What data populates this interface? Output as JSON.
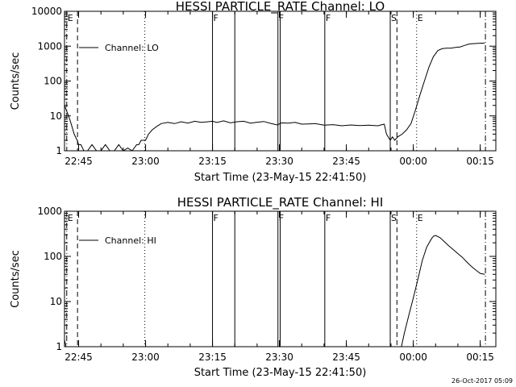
{
  "footer": {
    "date": "26-Oct-2017 05:09"
  },
  "chart_data": [
    {
      "type": "line",
      "title": "HESSI PARTICLE_RATE Channel: LO",
      "xlabel": "Start Time (23-May-15 22:41:50)",
      "ylabel": "Counts/sec",
      "y_scale": "log",
      "xlim": [
        "22:41:50",
        "00:18:30"
      ],
      "ylim": [
        1,
        10000
      ],
      "x_ticks": [
        "22:45",
        "23:00",
        "23:15",
        "23:30",
        "23:45",
        "00:00",
        "00:15"
      ],
      "y_ticks": [
        "1",
        "10",
        "100",
        "1000",
        "10000"
      ],
      "legend": {
        "label": "Channel: LO",
        "position": "top-left"
      },
      "grid": false,
      "markers": [
        {
          "time": "22:42:20",
          "label": "E",
          "style": "dashdot"
        },
        {
          "time": "22:44:45",
          "label": "",
          "style": "dashed"
        },
        {
          "time": "22:59:50",
          "label": "",
          "style": "dotted"
        },
        {
          "time": "23:15:00",
          "label": "F",
          "style": "solid"
        },
        {
          "time": "23:20:00",
          "label": "",
          "style": "solid"
        },
        {
          "time": "23:29:40",
          "label": "F",
          "style": "solid"
        },
        {
          "time": "23:30:10",
          "label": "",
          "style": "solid"
        },
        {
          "time": "23:40:10",
          "label": "F",
          "style": "solid"
        },
        {
          "time": "23:54:50",
          "label": "S",
          "style": "solid"
        },
        {
          "time": "23:56:20",
          "label": "",
          "style": "dashed"
        },
        {
          "time": "00:00:45",
          "label": "E",
          "style": "dotted"
        },
        {
          "time": "00:16:10",
          "label": "",
          "style": "dashdot"
        }
      ],
      "series": [
        {
          "x": [
            "22:41:50",
            "22:42:30",
            "22:43:00",
            "22:43:30",
            "22:44:00",
            "22:44:40",
            "22:45:00",
            "22:45:30",
            "22:46:10",
            "22:47:00",
            "22:48:00",
            "22:49:00",
            "22:50:00",
            "22:51:00",
            "22:52:00",
            "22:53:00",
            "22:54:00",
            "22:55:00",
            "22:56:00",
            "22:57:00",
            "22:58:00",
            "22:58:30",
            "22:59:00",
            "22:59:30",
            "23:00:00",
            "23:00:40",
            "23:01:30",
            "23:02:30",
            "23:03:30",
            "23:05:00",
            "23:06:30",
            "23:08:00",
            "23:09:30",
            "23:11:00",
            "23:12:30",
            "23:14:00",
            "23:15:00",
            "23:16:00",
            "23:17:30",
            "23:19:00",
            "23:20:30",
            "23:22:00",
            "23:23:30",
            "23:25:00",
            "23:26:30",
            "23:28:00",
            "23:29:30",
            "23:30:30",
            "23:32:00",
            "23:33:30",
            "23:35:00",
            "23:36:30",
            "23:38:00",
            "23:40:00",
            "23:42:00",
            "23:44:00",
            "23:46:00",
            "23:48:00",
            "23:50:00",
            "23:52:00",
            "23:53:30",
            "23:54:00",
            "23:54:50",
            "23:55:20",
            "23:55:50",
            "23:56:30",
            "23:57:30",
            "23:58:30",
            "23:59:30",
            "00:00:30",
            "00:01:30",
            "00:02:30",
            "00:03:30",
            "00:04:30",
            "00:05:30",
            "00:06:30",
            "00:07:30",
            "00:08:30",
            "00:09:30",
            "00:10:30",
            "00:11:30",
            "00:12:30",
            "00:13:30",
            "00:14:30",
            "00:15:30",
            "00:16:00"
          ],
          "y": [
            20,
            12,
            8,
            5,
            3,
            2,
            1.5,
            1.5,
            1,
            1,
            1.5,
            1,
            1,
            1.5,
            1,
            1,
            1.5,
            1,
            1.2,
            1,
            1.5,
            1.5,
            2,
            2,
            2,
            3,
            4,
            5,
            6,
            6.5,
            6,
            6.8,
            6.2,
            7,
            6.5,
            6.8,
            7,
            6.5,
            7.2,
            6.3,
            6.8,
            7,
            6.2,
            6.6,
            6.9,
            6.1,
            5.5,
            6.3,
            6.2,
            6.5,
            5.8,
            5.9,
            6,
            5.4,
            5.6,
            5.2,
            5.5,
            5.3,
            5.4,
            5.2,
            5.8,
            3,
            2,
            2.5,
            2,
            2.5,
            3,
            4,
            6,
            15,
            40,
            100,
            250,
            500,
            750,
            850,
            880,
            880,
            920,
            950,
            1050,
            1150,
            1180,
            1200,
            1220,
            1210
          ]
        }
      ]
    },
    {
      "type": "line",
      "title": "HESSI PARTICLE_RATE Channel: HI",
      "xlabel": "Start Time (23-May-15 22:41:50)",
      "ylabel": "Counts/sec",
      "y_scale": "log",
      "xlim": [
        "22:41:50",
        "00:18:30"
      ],
      "ylim": [
        1,
        1000
      ],
      "x_ticks": [
        "22:45",
        "23:00",
        "23:15",
        "23:30",
        "23:45",
        "00:00",
        "00:15"
      ],
      "y_ticks": [
        "1",
        "10",
        "100",
        "1000"
      ],
      "legend": {
        "label": "Channel: HI",
        "position": "top-left"
      },
      "grid": false,
      "markers": [
        {
          "time": "22:42:20",
          "label": "E",
          "style": "dashdot"
        },
        {
          "time": "22:44:45",
          "label": "",
          "style": "dashed"
        },
        {
          "time": "22:59:50",
          "label": "",
          "style": "dotted"
        },
        {
          "time": "23:15:00",
          "label": "F",
          "style": "solid"
        },
        {
          "time": "23:20:00",
          "label": "",
          "style": "solid"
        },
        {
          "time": "23:29:40",
          "label": "F",
          "style": "solid"
        },
        {
          "time": "23:30:10",
          "label": "",
          "style": "solid"
        },
        {
          "time": "23:40:10",
          "label": "F",
          "style": "solid"
        },
        {
          "time": "23:54:50",
          "label": "S",
          "style": "solid"
        },
        {
          "time": "23:56:20",
          "label": "",
          "style": "dashed"
        },
        {
          "time": "00:00:45",
          "label": "E",
          "style": "dotted"
        },
        {
          "time": "00:16:10",
          "label": "",
          "style": "dashdot"
        }
      ],
      "series": [
        {
          "x": [
            "22:41:50",
            "22:42:00",
            "22:42:10",
            "22:42:20"
          ],
          "y": [
            1.4,
            1.2,
            1,
            1
          ]
        },
        {
          "x": [
            "23:57:20",
            "23:58:00",
            "23:59:00",
            "00:00:00",
            "00:01:00",
            "00:02:00",
            "00:03:00",
            "00:04:00",
            "00:04:30",
            "00:05:00",
            "00:06:00",
            "00:07:00",
            "00:08:00",
            "00:09:00",
            "00:10:00",
            "00:11:00",
            "00:12:00",
            "00:13:00",
            "00:14:00",
            "00:15:00",
            "00:16:00"
          ],
          "y": [
            1,
            2,
            5,
            12,
            30,
            80,
            160,
            240,
            280,
            290,
            260,
            210,
            170,
            140,
            115,
            95,
            75,
            60,
            50,
            42,
            40
          ]
        }
      ]
    }
  ]
}
